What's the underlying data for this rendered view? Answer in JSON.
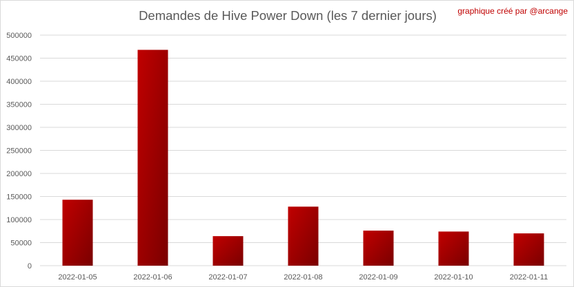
{
  "chart_data": {
    "type": "bar",
    "title": "Demandes de Hive Power Down (les 7 dernier jours)",
    "credit": "graphique créé par @arcange",
    "xlabel": "",
    "ylabel": "",
    "categories": [
      "2022-01-05",
      "2022-01-06",
      "2022-01-07",
      "2022-01-08",
      "2022-01-09",
      "2022-01-10",
      "2022-01-11"
    ],
    "values": [
      143000,
      468000,
      64000,
      128000,
      76000,
      74000,
      70000
    ],
    "ylim": [
      0,
      500000
    ],
    "yticks": [
      "0",
      "50000",
      "100000",
      "150000",
      "200000",
      "250000",
      "300000",
      "350000",
      "400000",
      "450000",
      "500000"
    ],
    "grid": true,
    "legend": "none",
    "colors": {
      "bar_top": "#c00000",
      "bar_bottom": "#7a0000",
      "grid": "#d9d9d9",
      "text": "#595959",
      "credit": "#c00000"
    }
  }
}
